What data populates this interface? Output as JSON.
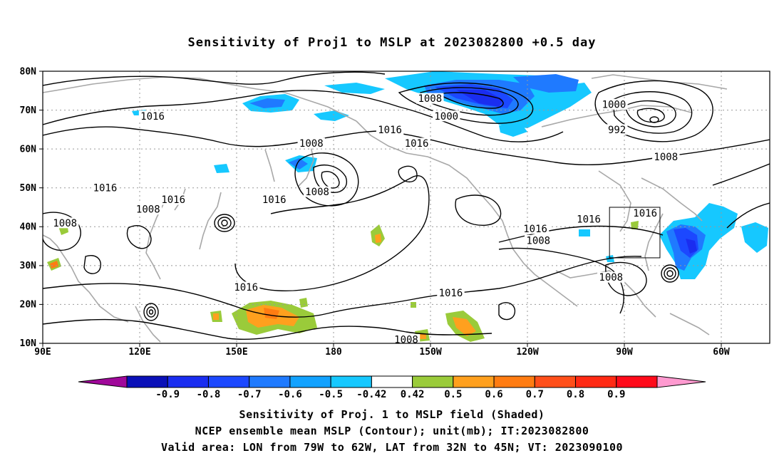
{
  "title": "Sensitivity of Proj1 to MSLP at 2023082800 +0.5 day",
  "lat_labels": [
    "80N",
    "70N",
    "60N",
    "50N",
    "40N",
    "30N",
    "20N",
    "10N"
  ],
  "lon_labels": [
    "90E",
    "120E",
    "150E",
    "180",
    "150W",
    "120W",
    "90W",
    "60W"
  ],
  "contour_labels": [
    {
      "text": "1008",
      "lon": 180.5,
      "lat": 61.5
    },
    {
      "text": "1008",
      "lon": 220.5,
      "lat": 73.0
    },
    {
      "text": "1000",
      "lon": 226.0,
      "lat": 68.5
    },
    {
      "text": "1000",
      "lon": 282.5,
      "lat": 71.5
    },
    {
      "text": "992",
      "lon": 283.5,
      "lat": 65.0
    },
    {
      "text": "1016",
      "lon": 127.0,
      "lat": 68.5
    },
    {
      "text": "1016",
      "lon": 207.0,
      "lat": 65.0
    },
    {
      "text": "1016",
      "lon": 216.0,
      "lat": 61.5
    },
    {
      "text": "1008",
      "lon": 300.0,
      "lat": 58.0
    },
    {
      "text": "1008",
      "lon": 182.5,
      "lat": 49.0
    },
    {
      "text": "1016",
      "lon": 111.0,
      "lat": 50.0
    },
    {
      "text": "1016",
      "lon": 134.0,
      "lat": 47.0
    },
    {
      "text": "1016",
      "lon": 168.0,
      "lat": 47.0
    },
    {
      "text": "1008",
      "lon": 125.5,
      "lat": 44.5
    },
    {
      "text": "1008",
      "lon": 97.5,
      "lat": 41.0
    },
    {
      "text": "1016",
      "lon": 256.0,
      "lat": 39.5
    },
    {
      "text": "1016",
      "lon": 274.0,
      "lat": 42.0
    },
    {
      "text": "1016",
      "lon": 293.0,
      "lat": 43.5
    },
    {
      "text": "1008",
      "lon": 257.0,
      "lat": 36.5
    },
    {
      "text": "1008",
      "lon": 281.5,
      "lat": 27.0
    },
    {
      "text": "1016",
      "lon": 158.5,
      "lat": 24.5
    },
    {
      "text": "1016",
      "lon": 227.5,
      "lat": 23.0
    },
    {
      "text": "1008",
      "lon": 212.5,
      "lat": 11.0
    }
  ],
  "colorbar": {
    "labels": [
      "-0.9",
      "-0.8",
      "-0.7",
      "-0.6",
      "-0.5",
      "-0.42",
      "0.42",
      "0.5",
      "0.6",
      "0.7",
      "0.8",
      "0.9"
    ],
    "colors": [
      "#a0089a",
      "#0a10b8",
      "#1a2df0",
      "#1c48ff",
      "#1f7aff",
      "#12a2ff",
      "#16c8ff",
      "#ffffff",
      "#9acb3a",
      "#ffa01e",
      "#ff7c12",
      "#ff4f1a",
      "#ff2a14",
      "#ff0a1a",
      "#ff9ad0"
    ]
  },
  "valid_area": {
    "lon_min": -79,
    "lon_max": -62,
    "lat_min": 32,
    "lat_max": 45
  },
  "captions": {
    "line1": "Sensitivity of Proj. 1 to MSLP field (Shaded)",
    "line2": "NCEP ensemble mean MSLP (Contour); unit(mb); IT:2023082800",
    "line3": "Valid area: LON from 79W to 62W, LAT from 32N to 45N; VT: 2023090100"
  }
}
